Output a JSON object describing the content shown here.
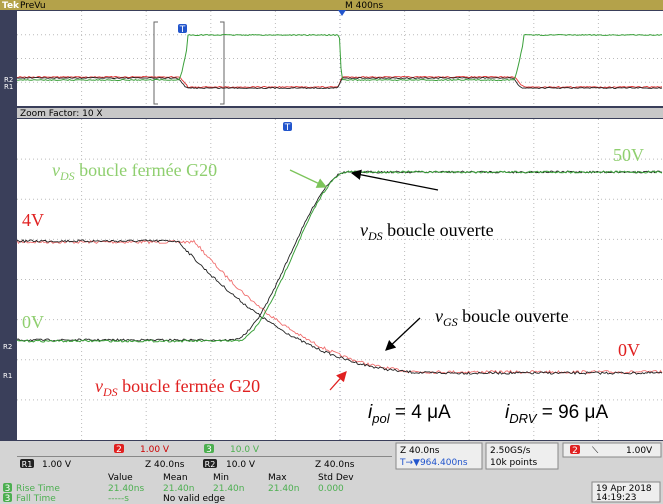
{
  "header": {
    "logo": "Tek",
    "mode": "PreVu",
    "timebase": "M 400ns"
  },
  "preview": {
    "trigger_marker": "T",
    "ref_labels": [
      "R2",
      "R1"
    ]
  },
  "zoom_bar": "Zoom Factor: 10 X",
  "main": {
    "trigger_marker": "T",
    "ref_labels": [
      "R2",
      "R1"
    ],
    "annotations": {
      "vds_closed_green": {
        "symbol": "v",
        "sub": "DS",
        "text": " boucle fermée G20"
      },
      "level_50v": "50V",
      "level_4v": "4V",
      "vds_open": {
        "symbol": "v",
        "sub": "DS",
        "text": " boucle ouverte"
      },
      "vgs_open": {
        "symbol": "v",
        "sub": "GS",
        "text": " boucle ouverte"
      },
      "level_0v_green": "0V",
      "level_0v_red": "0V",
      "vds_closed_red": {
        "symbol": "v",
        "sub": "DS",
        "text": " boucle fermée G20"
      },
      "i_pol": {
        "symbol": "i",
        "sub": "pol",
        "text": " = 4 μA"
      },
      "i_drv": {
        "symbol": "i",
        "sub": "DRV",
        "text": " = 96 μA"
      }
    }
  },
  "status": {
    "ch2": {
      "badge": "2",
      "scale": "1.00 V"
    },
    "ch3": {
      "badge": "3",
      "scale": "10.0 V"
    },
    "r1": {
      "badge": "R1",
      "scale": "1.00 V",
      "zoom": "Z 40.0ns"
    },
    "r2": {
      "badge": "R2",
      "scale": "10.0 V",
      "zoom": "Z 40.0ns"
    },
    "horizontal": {
      "zoom": "Z 40.0ns",
      "position": "T→▼964.400ns"
    },
    "acquisition": {
      "rate": "2.50GS/s",
      "points": "10k points"
    },
    "trigger": {
      "badge": "2",
      "slope": "⟍",
      "level": "1.00V"
    },
    "measurements": {
      "headers": [
        "Value",
        "Mean",
        "Min",
        "Max",
        "Std Dev"
      ],
      "rows": [
        {
          "badge": "3",
          "name": "Rise Time",
          "cells": [
            "21.40ns",
            "21.40n",
            "21.40n",
            "21.40n",
            "0.000"
          ]
        },
        {
          "badge": "3",
          "name": "Fall Time",
          "cells": [
            "-----s",
            "No valid edge"
          ]
        }
      ]
    },
    "date": "19 Apr 2018",
    "time": "14:19:23"
  }
}
